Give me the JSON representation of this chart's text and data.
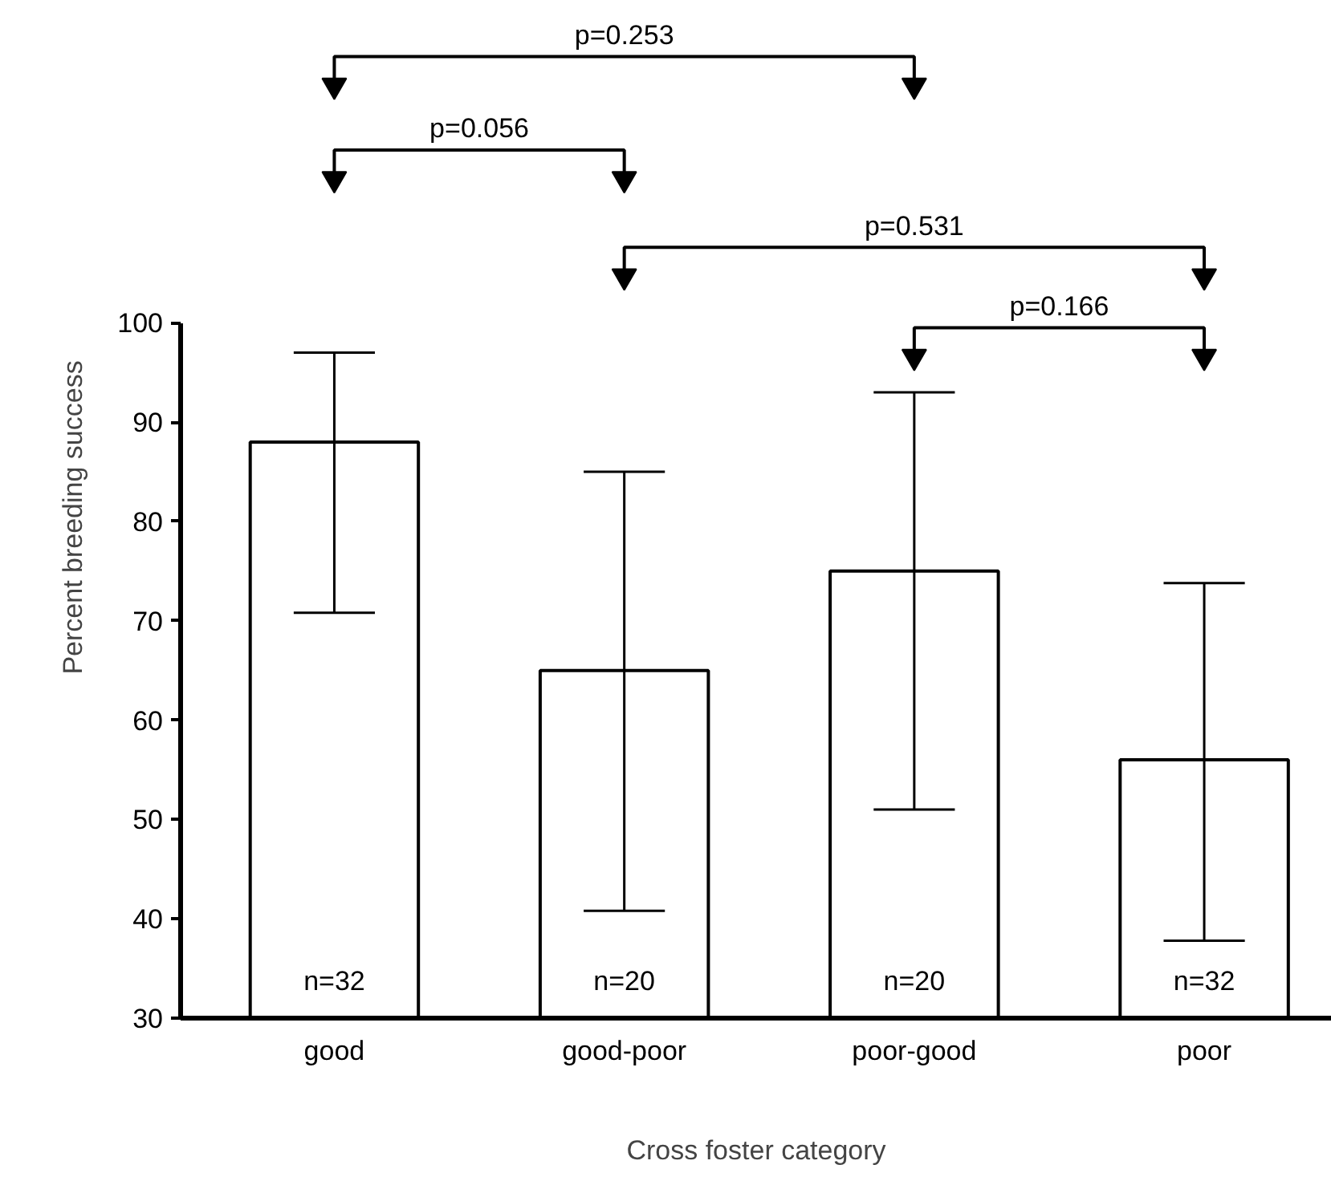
{
  "chart_data": {
    "type": "bar",
    "xlabel": "Cross foster category",
    "ylabel": "Percent breeding success",
    "categories": [
      "good",
      "good-poor",
      "poor-good",
      "poor"
    ],
    "values": [
      88,
      65,
      75,
      56
    ],
    "errors": [
      [
        70.8,
        97
      ],
      [
        40.8,
        85
      ],
      [
        51,
        93
      ],
      [
        37.8,
        73.8
      ]
    ],
    "color": "#ffffff",
    "ylim": [
      30,
      100
    ],
    "yticks": [
      30,
      40,
      50,
      60,
      70,
      80,
      90,
      100
    ],
    "grid": false,
    "annotations": [
      "n=32",
      "n=20",
      "n=20",
      "n=32",
      "p=0.253",
      "p=0.056",
      "p=0.531",
      "p=0.166"
    ]
  }
}
